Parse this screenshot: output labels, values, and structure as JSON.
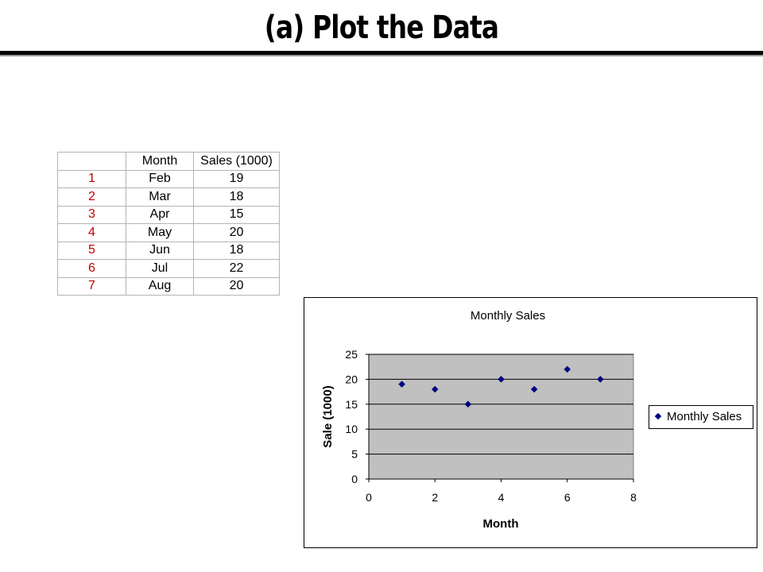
{
  "slide": {
    "title": "(a) Plot the Data"
  },
  "table": {
    "headers": [
      "",
      "Month",
      "Sales (1000)"
    ],
    "rows": [
      [
        "1",
        "Feb",
        "19"
      ],
      [
        "2",
        "Mar",
        "18"
      ],
      [
        "3",
        "Apr",
        "15"
      ],
      [
        "4",
        "May",
        "20"
      ],
      [
        "5",
        "Jun",
        "18"
      ],
      [
        "6",
        "Jul",
        "22"
      ],
      [
        "7",
        "Aug",
        "20"
      ]
    ]
  },
  "colors": {
    "marker": "#000080",
    "plot_area": "#c0c0c0",
    "row_number": "#c00000"
  },
  "chart_data": {
    "type": "scatter",
    "title": "Monthly Sales",
    "xlabel": "Month",
    "ylabel": "Sale (1000)",
    "xlim": [
      0,
      8
    ],
    "ylim": [
      0,
      25
    ],
    "xticks": [
      0,
      2,
      4,
      6,
      8
    ],
    "yticks": [
      0,
      5,
      10,
      15,
      20,
      25
    ],
    "grid": "horizontal",
    "legend": "right",
    "series": [
      {
        "name": "Monthly Sales",
        "x": [
          1,
          2,
          3,
          4,
          5,
          6,
          7
        ],
        "y": [
          19,
          18,
          15,
          20,
          18,
          22,
          20
        ]
      }
    ]
  }
}
